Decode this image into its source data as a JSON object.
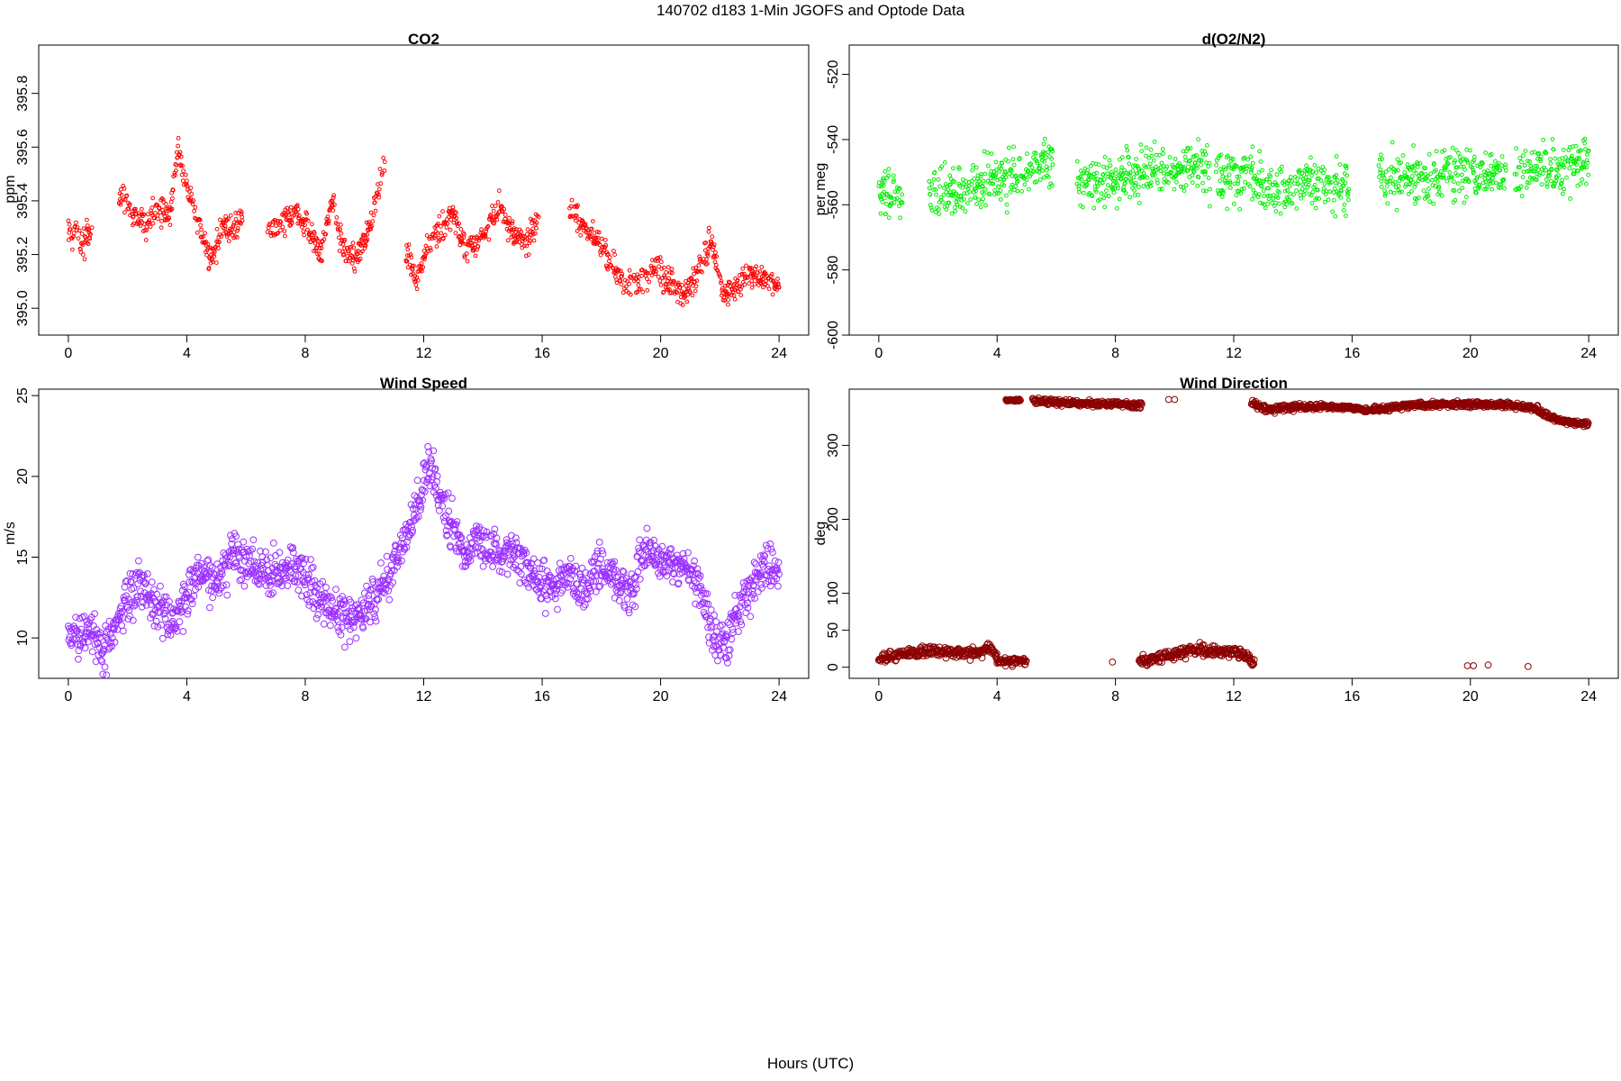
{
  "page": {
    "title": "140702   d183   1-Min  JGOFS and Optode Data",
    "xlabel": "Hours (UTC)"
  },
  "chart_data": [
    {
      "id": "co2",
      "type": "scatter",
      "title": "CO2",
      "xlabel": "",
      "ylabel": "ppm",
      "color": "#ff0000",
      "marker": "open-circle-small",
      "xlim": [
        -1,
        25
      ],
      "ylim": [
        394.9,
        395.98
      ],
      "xticks": [
        "0",
        "4",
        "8",
        "12",
        "16",
        "20",
        "24"
      ],
      "yticks": [
        "395.0",
        "395.2",
        "395.4",
        "395.6",
        "395.8"
      ],
      "segments": [
        [
          0.0,
          0.8
        ],
        [
          1.7,
          5.9
        ],
        [
          6.7,
          10.7
        ],
        [
          11.4,
          15.9
        ],
        [
          16.9,
          24.0
        ]
      ],
      "trend": [
        [
          0.0,
          395.28
        ],
        [
          0.4,
          395.26
        ],
        [
          0.8,
          395.26
        ],
        [
          1.8,
          395.42
        ],
        [
          2.2,
          395.35
        ],
        [
          2.6,
          395.3
        ],
        [
          3.0,
          395.38
        ],
        [
          3.4,
          395.33
        ],
        [
          3.7,
          395.6
        ],
        [
          4.0,
          395.45
        ],
        [
          4.3,
          395.33
        ],
        [
          4.6,
          395.25
        ],
        [
          4.9,
          395.17
        ],
        [
          5.2,
          395.32
        ],
        [
          5.5,
          395.29
        ],
        [
          5.9,
          395.34
        ],
        [
          6.7,
          395.3
        ],
        [
          7.2,
          395.3
        ],
        [
          7.7,
          395.38
        ],
        [
          8.1,
          395.3
        ],
        [
          8.5,
          395.2
        ],
        [
          8.9,
          395.4
        ],
        [
          9.3,
          395.22
        ],
        [
          9.7,
          395.18
        ],
        [
          10.1,
          395.28
        ],
        [
          10.4,
          395.4
        ],
        [
          10.7,
          395.55
        ],
        [
          11.4,
          395.2
        ],
        [
          11.8,
          395.1
        ],
        [
          12.2,
          395.25
        ],
        [
          12.6,
          395.3
        ],
        [
          13.0,
          395.35
        ],
        [
          13.4,
          395.22
        ],
        [
          13.8,
          395.25
        ],
        [
          14.2,
          395.3
        ],
        [
          14.6,
          395.38
        ],
        [
          15.0,
          395.27
        ],
        [
          15.4,
          395.25
        ],
        [
          15.9,
          395.32
        ],
        [
          16.9,
          395.36
        ],
        [
          17.4,
          395.3
        ],
        [
          17.9,
          395.25
        ],
        [
          18.4,
          395.15
        ],
        [
          18.9,
          395.08
        ],
        [
          19.4,
          395.1
        ],
        [
          19.9,
          395.15
        ],
        [
          20.4,
          395.08
        ],
        [
          20.8,
          395.05
        ],
        [
          21.2,
          395.12
        ],
        [
          21.7,
          395.25
        ],
        [
          22.1,
          395.05
        ],
        [
          22.6,
          395.08
        ],
        [
          23.0,
          395.12
        ],
        [
          23.5,
          395.1
        ],
        [
          24.0,
          395.07
        ]
      ],
      "noise": 0.04
    },
    {
      "id": "o2n2",
      "type": "scatter",
      "title": "d(O2/N2)",
      "xlabel": "",
      "ylabel": "per meg",
      "color": "#00ee00",
      "marker": "open-circle-small",
      "xlim": [
        -1,
        25
      ],
      "ylim": [
        -600,
        -511
      ],
      "xticks": [
        "0",
        "4",
        "8",
        "12",
        "16",
        "20",
        "24"
      ],
      "yticks": [
        "-600",
        "-580",
        "-560",
        "-540",
        "-520"
      ],
      "segments": [
        [
          0.0,
          0.8
        ],
        [
          1.7,
          5.9
        ],
        [
          6.7,
          11.2
        ],
        [
          11.4,
          15.9
        ],
        [
          16.9,
          21.2
        ],
        [
          21.5,
          24.0
        ]
      ],
      "trend": [
        [
          0.0,
          -557
        ],
        [
          0.8,
          -556
        ],
        [
          1.7,
          -557
        ],
        [
          3.0,
          -556
        ],
        [
          4.0,
          -552
        ],
        [
          5.0,
          -551
        ],
        [
          5.9,
          -545
        ],
        [
          6.7,
          -553
        ],
        [
          8.0,
          -553
        ],
        [
          9.0,
          -551
        ],
        [
          10.0,
          -549
        ],
        [
          11.2,
          -549
        ],
        [
          11.4,
          -551
        ],
        [
          12.5,
          -552
        ],
        [
          13.5,
          -556
        ],
        [
          14.5,
          -553
        ],
        [
          15.9,
          -555
        ],
        [
          16.9,
          -552
        ],
        [
          18.0,
          -552
        ],
        [
          19.0,
          -551
        ],
        [
          20.0,
          -550
        ],
        [
          21.2,
          -549
        ],
        [
          21.5,
          -550
        ],
        [
          22.5,
          -549
        ],
        [
          23.5,
          -548
        ],
        [
          24.0,
          -546
        ]
      ],
      "noise": 6
    },
    {
      "id": "wspd",
      "type": "scatter",
      "title": "Wind Speed",
      "xlabel": "",
      "ylabel": "m/s",
      "color": "#9b30ff",
      "marker": "open-circle",
      "xlim": [
        -1,
        25
      ],
      "ylim": [
        7.5,
        25.4
      ],
      "xticks": [
        "0",
        "4",
        "8",
        "12",
        "16",
        "20",
        "24"
      ],
      "yticks": [
        "10",
        "15",
        "20",
        "25"
      ],
      "segments": [
        [
          0.0,
          24.0
        ]
      ],
      "trend": [
        [
          0.0,
          10.3
        ],
        [
          0.4,
          10.0
        ],
        [
          0.8,
          10.5
        ],
        [
          1.2,
          9.0
        ],
        [
          1.6,
          11.0
        ],
        [
          2.0,
          12.5
        ],
        [
          2.4,
          13.0
        ],
        [
          2.8,
          12.0
        ],
        [
          3.2,
          11.5
        ],
        [
          3.6,
          11.0
        ],
        [
          4.0,
          12.5
        ],
        [
          4.5,
          14.0
        ],
        [
          5.0,
          13.5
        ],
        [
          5.5,
          15.0
        ],
        [
          6.0,
          14.5
        ],
        [
          6.5,
          14.0
        ],
        [
          7.0,
          14.0
        ],
        [
          7.5,
          14.5
        ],
        [
          8.0,
          13.5
        ],
        [
          8.5,
          12.5
        ],
        [
          9.0,
          11.5
        ],
        [
          9.5,
          11.0
        ],
        [
          10.0,
          11.5
        ],
        [
          10.5,
          13.0
        ],
        [
          11.0,
          14.5
        ],
        [
          11.5,
          16.5
        ],
        [
          11.9,
          19.0
        ],
        [
          12.2,
          21.0
        ],
        [
          12.6,
          18.0
        ],
        [
          13.0,
          17.0
        ],
        [
          13.4,
          15.0
        ],
        [
          13.8,
          16.0
        ],
        [
          14.2,
          15.5
        ],
        [
          14.6,
          15.0
        ],
        [
          15.0,
          15.5
        ],
        [
          15.5,
          14.5
        ],
        [
          16.0,
          13.0
        ],
        [
          16.5,
          13.5
        ],
        [
          17.0,
          14.0
        ],
        [
          17.5,
          13.0
        ],
        [
          18.0,
          14.5
        ],
        [
          18.5,
          13.5
        ],
        [
          19.0,
          13.0
        ],
        [
          19.5,
          15.5
        ],
        [
          20.0,
          15.0
        ],
        [
          20.5,
          14.5
        ],
        [
          21.0,
          14.0
        ],
        [
          21.4,
          13.0
        ],
        [
          21.8,
          10.5
        ],
        [
          22.2,
          9.5
        ],
        [
          22.6,
          11.5
        ],
        [
          23.0,
          13.0
        ],
        [
          23.5,
          14.5
        ],
        [
          24.0,
          14.0
        ]
      ],
      "noise": 1.1
    },
    {
      "id": "wdir",
      "type": "scatter",
      "title": "Wind Direction",
      "xlabel": "",
      "ylabel": "deg",
      "color": "#8b0000",
      "marker": "open-circle",
      "xlim": [
        -1,
        25
      ],
      "ylim": [
        -15,
        376
      ],
      "xticks": [
        "0",
        "4",
        "8",
        "12",
        "16",
        "20",
        "24"
      ],
      "yticks": [
        "0",
        "50",
        "100",
        "200",
        "300"
      ],
      "bands": [
        {
          "range": [
            0.0,
            4.0
          ],
          "trend": [
            [
              0.0,
              12
            ],
            [
              1.0,
              18
            ],
            [
              2.0,
              22
            ],
            [
              3.0,
              18
            ],
            [
              3.8,
              25
            ],
            [
              4.0,
              15
            ]
          ],
          "noise": 6
        },
        {
          "range": [
            4.0,
            5.0
          ],
          "trend": [
            [
              4.0,
              8
            ],
            [
              5.0,
              8
            ]
          ],
          "noise": 4
        },
        {
          "range": [
            4.3,
            4.8
          ],
          "trend": [
            [
              4.3,
              361
            ],
            [
              4.8,
              361
            ]
          ],
          "noise": 1.5
        },
        {
          "range": [
            5.2,
            8.9
          ],
          "trend": [
            [
              5.2,
              360
            ],
            [
              6.5,
              358
            ],
            [
              8.0,
              356
            ],
            [
              8.9,
              355
            ]
          ],
          "noise": 3
        },
        {
          "range": [
            8.8,
            12.7
          ],
          "trend": [
            [
              8.8,
              10
            ],
            [
              9.8,
              15
            ],
            [
              10.8,
              25
            ],
            [
              11.5,
              20
            ],
            [
              12.3,
              20
            ],
            [
              12.7,
              5
            ]
          ],
          "noise": 6
        },
        {
          "range": [
            12.6,
            13.4
          ],
          "trend": [
            [
              12.6,
              358
            ],
            [
              13.0,
              350
            ],
            [
              13.4,
              348
            ]
          ],
          "noise": 4
        },
        {
          "range": [
            13.4,
            22.3
          ],
          "trend": [
            [
              13.4,
              350
            ],
            [
              15.0,
              353
            ],
            [
              16.5,
              348
            ],
            [
              18.0,
              354
            ],
            [
              19.5,
              356
            ],
            [
              21.0,
              355
            ],
            [
              22.3,
              350
            ]
          ],
          "noise": 3
        },
        {
          "range": [
            22.3,
            24.0
          ],
          "trend": [
            [
              22.3,
              345
            ],
            [
              23.0,
              335
            ],
            [
              23.5,
              330
            ],
            [
              24.0,
              328
            ]
          ],
          "noise": 3
        }
      ],
      "isolated": [
        [
          7.9,
          7
        ],
        [
          9.8,
          362
        ],
        [
          10.0,
          362
        ],
        [
          19.9,
          2
        ],
        [
          20.1,
          2
        ],
        [
          20.6,
          3
        ],
        [
          21.95,
          1
        ]
      ]
    }
  ]
}
